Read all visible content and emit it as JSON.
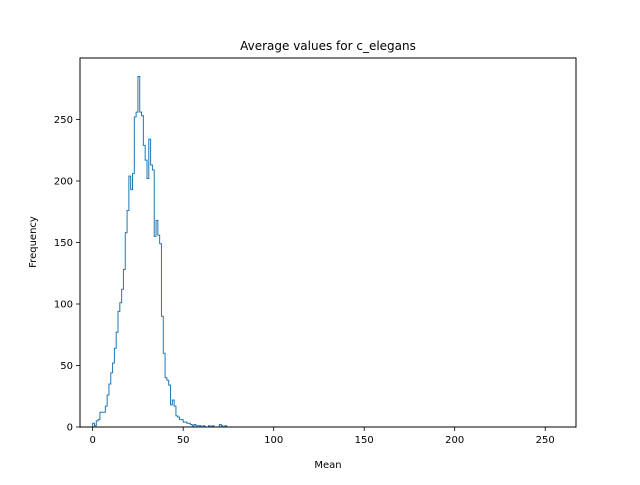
{
  "chart_data": {
    "type": "histogram",
    "title": "Average values for c_elegans",
    "xlabel": "Mean",
    "ylabel": "Frequency",
    "xlim": [
      -7,
      267
    ],
    "ylim": [
      0,
      300
    ],
    "xticks": [
      0,
      50,
      100,
      150,
      200,
      250
    ],
    "yticks": [
      0,
      50,
      100,
      150,
      200,
      250
    ],
    "grid": false,
    "color": "#1f77b4",
    "histtype": "step",
    "bin_width": 1,
    "bins_start": 0,
    "counts": [
      3,
      1,
      5,
      6,
      12,
      12,
      12,
      17,
      26,
      35,
      44,
      52,
      64,
      77,
      94,
      101,
      112,
      128,
      158,
      176,
      204,
      193,
      206,
      252,
      256,
      285,
      256,
      253,
      229,
      217,
      202,
      234,
      213,
      209,
      155,
      168,
      156,
      149,
      90,
      60,
      40,
      38,
      34,
      18,
      22,
      17,
      9,
      8,
      6,
      6,
      4,
      4,
      3,
      3,
      2,
      1,
      2,
      1,
      1,
      1,
      0,
      1,
      0,
      0,
      1,
      0,
      1,
      0,
      0,
      0,
      2,
      1,
      0,
      1,
      0,
      0,
      0,
      0,
      0,
      0,
      0,
      0,
      0,
      0,
      0,
      0,
      0,
      0,
      0,
      0,
      0,
      0,
      0,
      0,
      0,
      0,
      0,
      0,
      0,
      0,
      0,
      0,
      0,
      0,
      0,
      0,
      0,
      0,
      0,
      0,
      0,
      0,
      0,
      0,
      0,
      0,
      0,
      0,
      0,
      0,
      0,
      0,
      0,
      0,
      0,
      0,
      0,
      0,
      0,
      0,
      0,
      0,
      0,
      0,
      0,
      0,
      0,
      0,
      0,
      0,
      0,
      0,
      0,
      0,
      0,
      0,
      0,
      0,
      0,
      0,
      0,
      0,
      0,
      0,
      0,
      0,
      0,
      0,
      0,
      0,
      0,
      0,
      0,
      0,
      0,
      0,
      0,
      0,
      0,
      0,
      0,
      0,
      0,
      0,
      0,
      0,
      0,
      0,
      0,
      0,
      0,
      0,
      0,
      0,
      0,
      0,
      0,
      0,
      0,
      0,
      0,
      0,
      0,
      0,
      0,
      0,
      0,
      0,
      0,
      0,
      0,
      0,
      0,
      0,
      0,
      0,
      0,
      0,
      0,
      0,
      0,
      0,
      0,
      0,
      0,
      0,
      0,
      0,
      0,
      0,
      0,
      0,
      0,
      0,
      0,
      0,
      0,
      0,
      0,
      0,
      0,
      0,
      0,
      0,
      0,
      0,
      0,
      0,
      0,
      0,
      0,
      0,
      0,
      0,
      0,
      0,
      0,
      0,
      0,
      0,
      0,
      0,
      0,
      0,
      0,
      0,
      0,
      0,
      0,
      0,
      0,
      0,
      0
    ]
  }
}
